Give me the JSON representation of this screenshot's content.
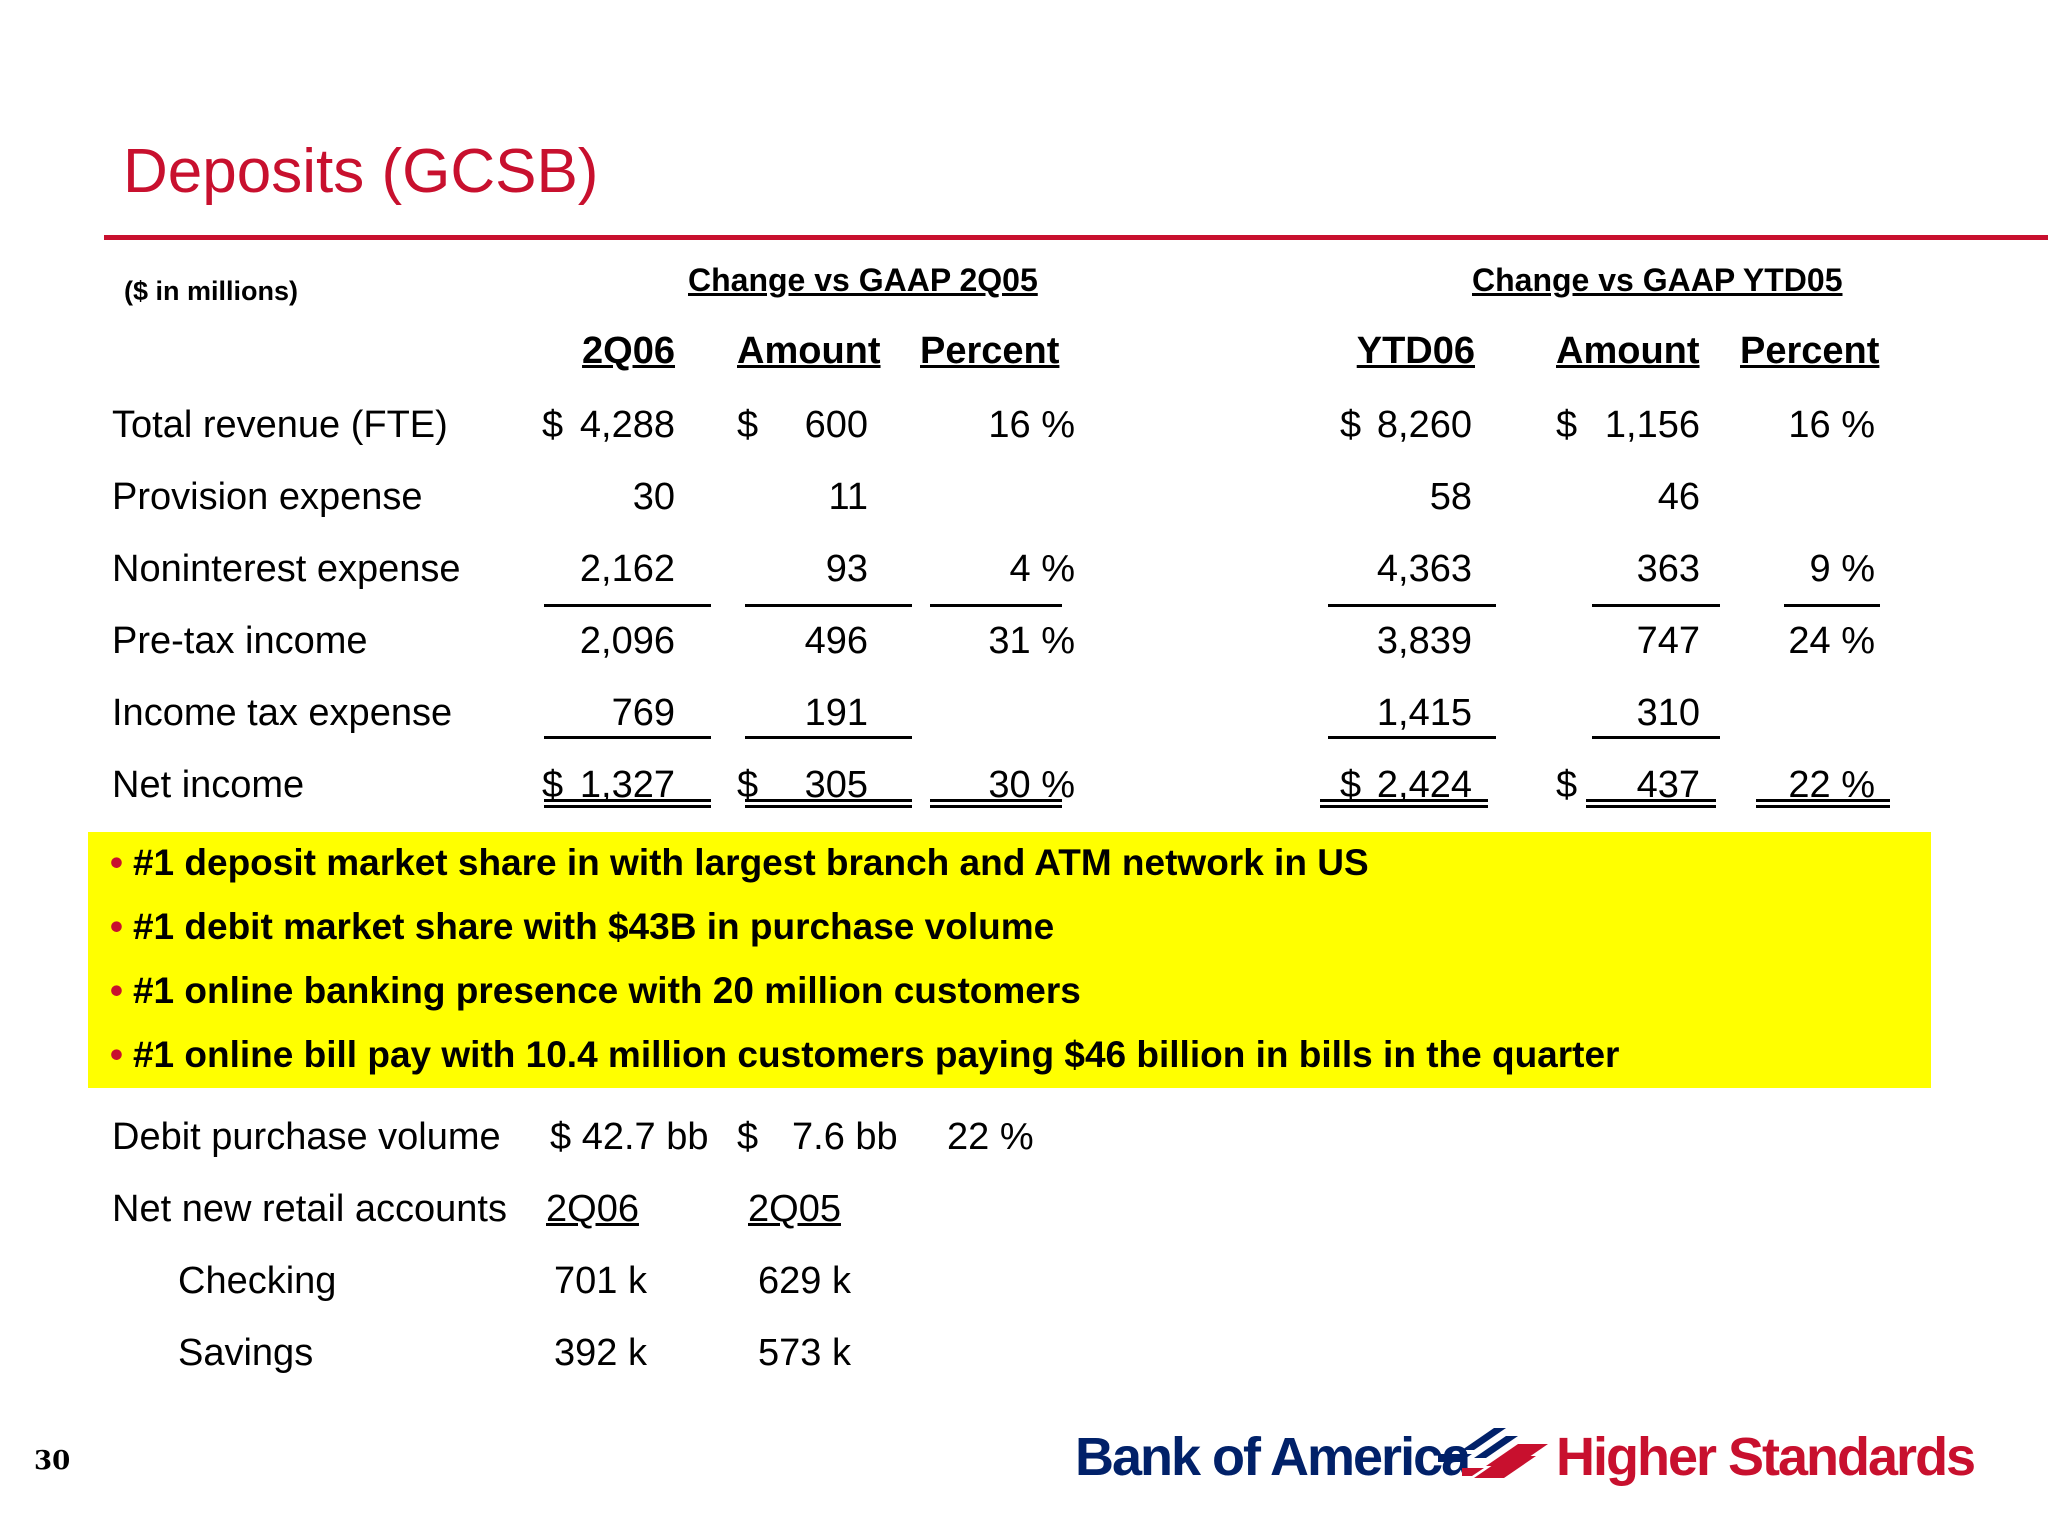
{
  "title": "Deposits (GCSB)",
  "units": "($ in millions)",
  "groups": {
    "left": "Change vs GAAP 2Q05",
    "right": "Change vs GAAP YTD05"
  },
  "columns": [
    "2Q06",
    "Amount",
    "Percent",
    "YTD06",
    "Amount",
    "Percent"
  ],
  "rows": [
    {
      "label": "Total revenue (FTE)",
      "q_dollar": "$",
      "q": "4,288",
      "qa_dollar": "$",
      "qa": "600",
      "qp": "16 %",
      "y_dollar": "$",
      "y": "8,260",
      "ya_dollar": "$",
      "ya": "1,156",
      "yp": "16 %"
    },
    {
      "label": "Provision expense",
      "q_dollar": "",
      "q": "30",
      "qa_dollar": "",
      "qa": "11",
      "qp": "",
      "y_dollar": "",
      "y": "58",
      "ya_dollar": "",
      "ya": "46",
      "yp": ""
    },
    {
      "label": "Noninterest expense",
      "q_dollar": "",
      "q": "2,162",
      "qa_dollar": "",
      "qa": "93",
      "qp": "4 %",
      "y_dollar": "",
      "y": "4,363",
      "ya_dollar": "",
      "ya": "363",
      "yp": "9 %"
    },
    {
      "label": "Pre-tax income",
      "q_dollar": "",
      "q": "2,096",
      "qa_dollar": "",
      "qa": "496",
      "qp": "31 %",
      "y_dollar": "",
      "y": "3,839",
      "ya_dollar": "",
      "ya": "747",
      "yp": "24 %"
    },
    {
      "label": "Income tax expense",
      "q_dollar": "",
      "q": "769",
      "qa_dollar": "",
      "qa": "191",
      "qp": "",
      "y_dollar": "",
      "y": "1,415",
      "ya_dollar": "",
      "ya": "310",
      "yp": ""
    },
    {
      "label": "Net income",
      "q_dollar": "$",
      "q": "1,327",
      "qa_dollar": "$",
      "qa": "305",
      "qp": "30 %",
      "y_dollar": "$",
      "y": "2,424",
      "ya_dollar": "$",
      "ya": "437",
      "yp": "22 %"
    }
  ],
  "highlights": [
    "#1 deposit market share in with largest branch and ATM network in US",
    "#1 debit market share with $43B in purchase volume",
    "#1 online banking presence with 20 million customers",
    "#1 online bill pay with 10.4 million customers paying $46 billion in bills in the quarter"
  ],
  "debit": {
    "label": "Debit purchase volume",
    "value": "$ 42.7 bb",
    "amount_dollar": "$",
    "amount": "7.6 bb",
    "percent": "22 %"
  },
  "accounts": {
    "label": "Net new retail accounts",
    "col1": "2Q06",
    "col2": "2Q05",
    "items": [
      {
        "label": "Checking",
        "v1": "701 k",
        "v2": "629 k"
      },
      {
        "label": "Savings",
        "v1": "392 k",
        "v2": "573 k"
      }
    ]
  },
  "page_number": "30",
  "logo": {
    "brand": "Bank of America",
    "tagline": "Higher Standards"
  },
  "colors": {
    "accent_red": "#c8102e",
    "brand_blue": "#012169",
    "highlight": "#ffff00"
  }
}
